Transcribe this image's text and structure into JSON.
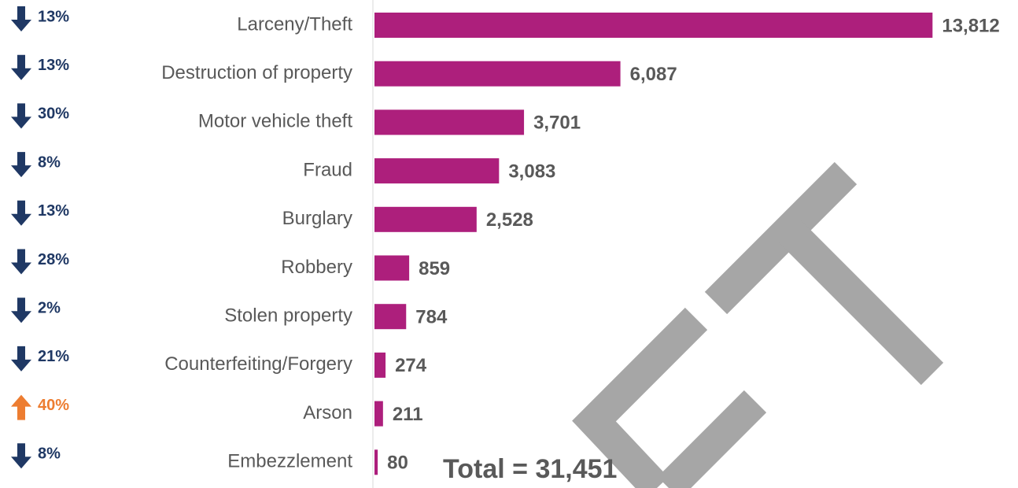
{
  "chart_data": {
    "type": "bar",
    "orientation": "horizontal",
    "categories": [
      "Larceny/Theft",
      "Destruction of property",
      "Motor vehicle theft",
      "Fraud",
      "Burglary",
      "Robbery",
      "Stolen property",
      "Counterfeiting/Forgery",
      "Arson",
      "Embezzlement"
    ],
    "values": [
      13812,
      6087,
      3701,
      3083,
      2528,
      859,
      784,
      274,
      211,
      80
    ],
    "value_labels": [
      "13,812",
      "6,087",
      "3,701",
      "3,083",
      "2,528",
      "859",
      "784",
      "274",
      "211",
      "80"
    ],
    "color": "#ad1f7c",
    "xlim": [
      0,
      14000
    ],
    "changes": [
      13,
      13,
      30,
      8,
      13,
      28,
      2,
      21,
      40,
      8
    ],
    "change_labels": [
      "13%",
      "13%",
      "30%",
      "8%",
      "13%",
      "28%",
      "2%",
      "21%",
      "40%",
      "8%"
    ],
    "change_directions": [
      "down",
      "down",
      "down",
      "down",
      "down",
      "down",
      "down",
      "down",
      "up",
      "down"
    ],
    "down_color": "#1f3864",
    "up_color": "#ed7d31",
    "annotation": "Total = 31,451"
  }
}
